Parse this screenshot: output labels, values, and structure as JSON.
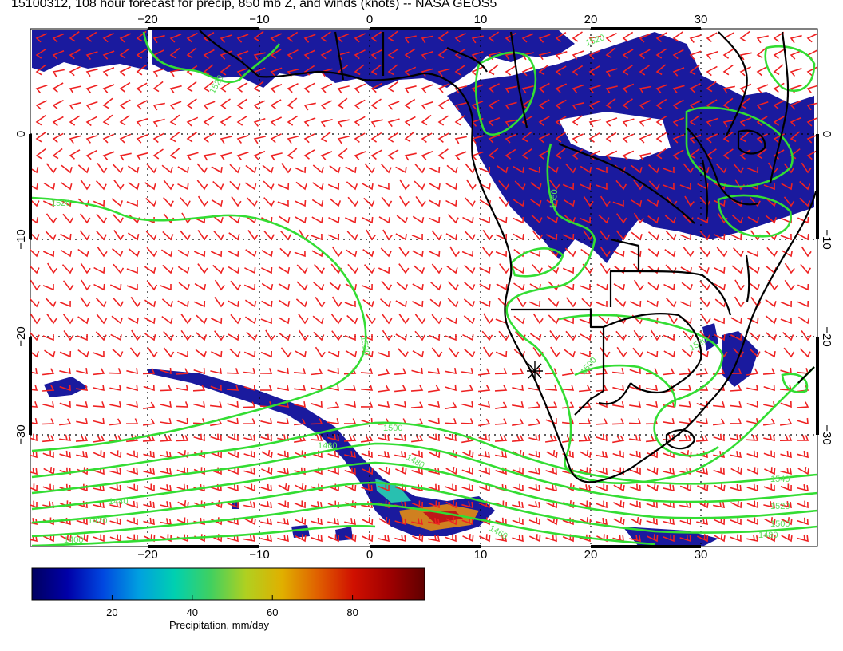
{
  "title": "15100312, 108 hour forecast for precip, 850 mb Z, and winds (knots) -- NASA GEOS5",
  "map": {
    "lon_range": [
      -30,
      42
    ],
    "lat_range": [
      -39,
      10
    ],
    "lon_ticks": [
      -20,
      -10,
      0,
      10,
      20,
      30
    ],
    "lat_ticks": [
      0,
      -10,
      -20,
      -30
    ],
    "lon_tick_labels": [
      "−20",
      "−10",
      "0",
      "10",
      "20",
      "30"
    ],
    "lat_tick_labels": [
      "0",
      "−10",
      "−20",
      "−30"
    ],
    "gridlines": "dotted",
    "colors": {
      "contours": "#33dd33",
      "wind_barbs": "#ee2222",
      "coastlines": "#000000",
      "precip_low": "#1a1a9e"
    },
    "contour_labels": [
      "1520",
      "1520",
      "1520",
      "1550",
      "1520",
      "1500",
      "1460",
      "1480",
      "1440",
      "1420",
      "1400",
      "1540",
      "1520",
      "1500",
      "1480",
      "1460",
      "1500",
      "1520"
    ],
    "marker": "star-icon"
  },
  "colorbar": {
    "ticks": [
      "20",
      "40",
      "60",
      "80"
    ],
    "range": [
      0,
      98
    ],
    "title": "Precipitation, mm/day",
    "colormap": [
      "#000060",
      "#0000a8",
      "#0048e0",
      "#00a0e0",
      "#00d0b0",
      "#40d060",
      "#b0d020",
      "#e0b000",
      "#e06000",
      "#d01000",
      "#a00000",
      "#600000"
    ]
  }
}
